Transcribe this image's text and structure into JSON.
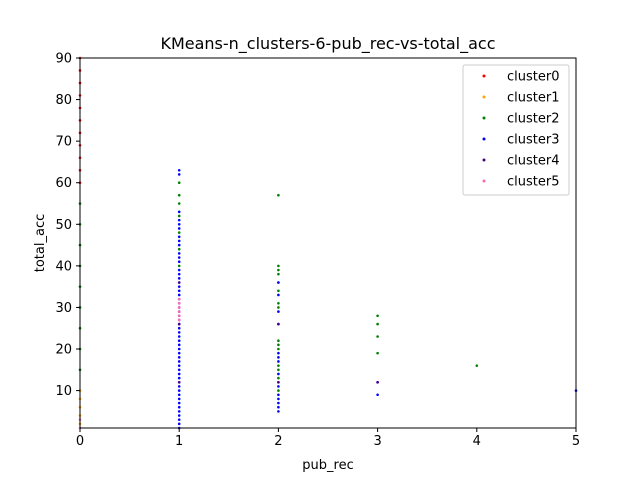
{
  "chart_data": {
    "type": "scatter",
    "title": "KMeans-n_clusters-6-pub_rec-vs-total_acc",
    "xlabel": "pub_rec",
    "ylabel": "total_acc",
    "xlim": [
      0,
      5
    ],
    "ylim": [
      1,
      90
    ],
    "xticks": [
      "0",
      "1",
      "2",
      "3",
      "4",
      "5"
    ],
    "yticks": [
      "10",
      "20",
      "30",
      "40",
      "50",
      "60",
      "70",
      "80",
      "90"
    ],
    "grid": false,
    "legend_position": "top-right",
    "series": [
      {
        "name": "cluster0",
        "color": "#ff0000",
        "points": [
          [
            0,
            60
          ],
          [
            0,
            63
          ],
          [
            0,
            66
          ],
          [
            0,
            69
          ],
          [
            0,
            72
          ],
          [
            0,
            75
          ],
          [
            0,
            78
          ],
          [
            0,
            81
          ],
          [
            0,
            84
          ],
          [
            0,
            87
          ],
          [
            0,
            90
          ]
        ]
      },
      {
        "name": "cluster1",
        "color": "#ffa500",
        "points": [
          [
            0,
            2
          ],
          [
            0,
            4
          ],
          [
            0,
            6
          ],
          [
            0,
            8
          ],
          [
            0,
            10
          ]
        ]
      },
      {
        "name": "cluster2",
        "color": "#008000",
        "points": [
          [
            0,
            15
          ],
          [
            0,
            20
          ],
          [
            0,
            25
          ],
          [
            0,
            30
          ],
          [
            0,
            35
          ],
          [
            0,
            40
          ],
          [
            0,
            45
          ],
          [
            0,
            50
          ],
          [
            0,
            55
          ],
          [
            1,
            40
          ],
          [
            1,
            44
          ],
          [
            1,
            48
          ],
          [
            1,
            52
          ],
          [
            1,
            55
          ],
          [
            1,
            57
          ],
          [
            1,
            60
          ],
          [
            2,
            57
          ],
          [
            2,
            40
          ],
          [
            2,
            39
          ],
          [
            2,
            38
          ],
          [
            2,
            36
          ],
          [
            2,
            34
          ],
          [
            2,
            31
          ],
          [
            2,
            30
          ],
          [
            2,
            22
          ],
          [
            2,
            21
          ],
          [
            2,
            20
          ],
          [
            2,
            16
          ],
          [
            2,
            15
          ],
          [
            2,
            13
          ],
          [
            2,
            10
          ],
          [
            3,
            28
          ],
          [
            3,
            26
          ],
          [
            3,
            23
          ],
          [
            3,
            19
          ],
          [
            4,
            16
          ]
        ]
      },
      {
        "name": "cluster3",
        "color": "#0000ff",
        "points": [
          [
            1,
            1
          ],
          [
            1,
            2
          ],
          [
            1,
            3
          ],
          [
            1,
            4
          ],
          [
            1,
            5
          ],
          [
            1,
            6
          ],
          [
            1,
            7
          ],
          [
            1,
            8
          ],
          [
            1,
            9
          ],
          [
            1,
            10
          ],
          [
            1,
            11
          ],
          [
            1,
            12
          ],
          [
            1,
            13
          ],
          [
            1,
            14
          ],
          [
            1,
            15
          ],
          [
            1,
            16
          ],
          [
            1,
            17
          ],
          [
            1,
            18
          ],
          [
            1,
            19
          ],
          [
            1,
            20
          ],
          [
            1,
            21
          ],
          [
            1,
            22
          ],
          [
            1,
            23
          ],
          [
            1,
            24
          ],
          [
            1,
            25
          ],
          [
            1,
            26
          ],
          [
            1,
            27
          ],
          [
            1,
            28
          ],
          [
            1,
            29
          ],
          [
            1,
            30
          ],
          [
            1,
            31
          ],
          [
            1,
            32
          ],
          [
            1,
            33
          ],
          [
            1,
            34
          ],
          [
            1,
            35
          ],
          [
            1,
            36
          ],
          [
            1,
            37
          ],
          [
            1,
            38
          ],
          [
            1,
            39
          ],
          [
            1,
            41
          ],
          [
            1,
            42
          ],
          [
            1,
            43
          ],
          [
            1,
            45
          ],
          [
            1,
            46
          ],
          [
            1,
            47
          ],
          [
            1,
            49
          ],
          [
            1,
            50
          ],
          [
            1,
            51
          ],
          [
            1,
            53
          ],
          [
            1,
            62
          ],
          [
            1,
            63
          ],
          [
            2,
            5
          ],
          [
            2,
            6
          ],
          [
            2,
            7
          ],
          [
            2,
            8
          ],
          [
            2,
            9
          ],
          [
            2,
            11
          ],
          [
            2,
            12
          ],
          [
            2,
            14
          ],
          [
            2,
            17
          ],
          [
            2,
            18
          ],
          [
            2,
            19
          ],
          [
            2,
            26
          ],
          [
            2,
            29
          ],
          [
            2,
            33
          ],
          [
            2,
            36
          ],
          [
            3,
            12
          ],
          [
            3,
            9
          ],
          [
            5,
            10
          ]
        ]
      },
      {
        "name": "cluster4",
        "color": "#4b0082",
        "points": [
          [
            1,
            12
          ],
          [
            1,
            26
          ],
          [
            1,
            36
          ],
          [
            2,
            26
          ],
          [
            2,
            12
          ],
          [
            3,
            12
          ]
        ]
      },
      {
        "name": "cluster5",
        "color": "#ff69b4",
        "points": [
          [
            0,
            1
          ],
          [
            0,
            3
          ],
          [
            1,
            27
          ],
          [
            1,
            28
          ],
          [
            1,
            29
          ],
          [
            1,
            30
          ],
          [
            1,
            31
          ],
          [
            1,
            32
          ]
        ]
      }
    ]
  }
}
